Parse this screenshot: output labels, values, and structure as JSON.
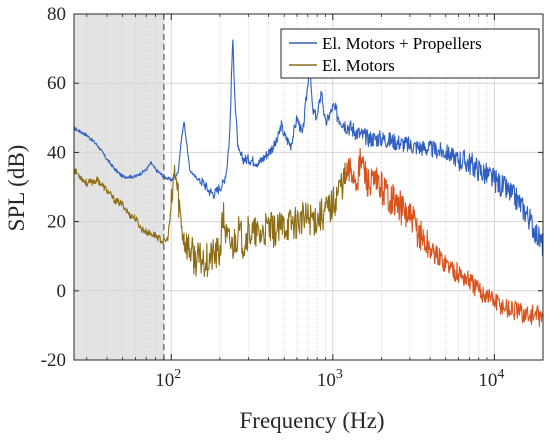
{
  "chart_data": {
    "type": "line",
    "xlabel": "Frequency (Hz)",
    "ylabel": "SPL (dB)",
    "x_scale": "log",
    "xlim": [
      25,
      20000
    ],
    "ylim": [
      -20,
      80
    ],
    "yticks": [
      -20,
      0,
      20,
      40,
      60,
      80
    ],
    "xticks": [
      {
        "value": 100,
        "base": "10",
        "exp": "2"
      },
      {
        "value": 1000,
        "base": "10",
        "exp": "3"
      },
      {
        "value": 10000,
        "base": "10",
        "exp": "4"
      }
    ],
    "grid": true,
    "legend_position": "top-right",
    "shaded_region": {
      "x": [
        25,
        90
      ],
      "color": "#e3e3e3",
      "boundary_line": "dashed"
    },
    "series": [
      {
        "name": "El. Motors + Propellers",
        "color": "#2f5fbf",
        "points": [
          [
            25,
            47
          ],
          [
            30,
            45
          ],
          [
            35,
            42
          ],
          [
            40,
            38
          ],
          [
            45,
            35
          ],
          [
            50,
            33
          ],
          [
            60,
            33
          ],
          [
            70,
            35
          ],
          [
            75,
            37
          ],
          [
            80,
            35
          ],
          [
            90,
            33
          ],
          [
            100,
            32
          ],
          [
            105,
            33
          ],
          [
            110,
            34
          ],
          [
            115,
            43
          ],
          [
            120,
            49
          ],
          [
            125,
            42
          ],
          [
            130,
            35
          ],
          [
            140,
            33
          ],
          [
            150,
            32
          ],
          [
            160,
            31
          ],
          [
            170,
            29
          ],
          [
            185,
            28
          ],
          [
            200,
            30
          ],
          [
            210,
            31
          ],
          [
            220,
            35
          ],
          [
            230,
            45
          ],
          [
            240,
            73
          ],
          [
            250,
            52
          ],
          [
            260,
            40
          ],
          [
            280,
            38
          ],
          [
            300,
            38
          ],
          [
            350,
            37
          ],
          [
            400,
            40
          ],
          [
            450,
            43
          ],
          [
            480,
            48
          ],
          [
            500,
            45
          ],
          [
            550,
            42
          ],
          [
            600,
            50
          ],
          [
            650,
            45
          ],
          [
            700,
            60
          ],
          [
            720,
            65
          ],
          [
            750,
            52
          ],
          [
            800,
            50
          ],
          [
            850,
            58
          ],
          [
            900,
            48
          ],
          [
            1000,
            53
          ],
          [
            1100,
            50
          ],
          [
            1200,
            48
          ],
          [
            1300,
            47
          ],
          [
            1500,
            45
          ],
          [
            1700,
            44
          ],
          [
            2000,
            44
          ],
          [
            2500,
            43
          ],
          [
            3000,
            42
          ],
          [
            4000,
            41
          ],
          [
            5000,
            40
          ],
          [
            6000,
            38
          ],
          [
            7000,
            37
          ],
          [
            8000,
            35
          ],
          [
            10000,
            32
          ],
          [
            12000,
            29
          ],
          [
            14000,
            26
          ],
          [
            16000,
            22
          ],
          [
            18000,
            17
          ],
          [
            20000,
            13
          ]
        ]
      },
      {
        "name": "El. Motors",
        "color": "#8c6d14",
        "color_high": "#d9531e",
        "points": [
          [
            25,
            35
          ],
          [
            30,
            31
          ],
          [
            35,
            32
          ],
          [
            40,
            29
          ],
          [
            45,
            26
          ],
          [
            50,
            25
          ],
          [
            55,
            22
          ],
          [
            60,
            21
          ],
          [
            65,
            18
          ],
          [
            70,
            17
          ],
          [
            80,
            16
          ],
          [
            90,
            14
          ],
          [
            95,
            15
          ],
          [
            100,
            24
          ],
          [
            105,
            35
          ],
          [
            110,
            28
          ],
          [
            115,
            20
          ],
          [
            120,
            15
          ],
          [
            130,
            12
          ],
          [
            140,
            9
          ],
          [
            150,
            9
          ],
          [
            170,
            9
          ],
          [
            180,
            10
          ],
          [
            200,
            11
          ],
          [
            210,
            22
          ],
          [
            220,
            15
          ],
          [
            240,
            13
          ],
          [
            260,
            17
          ],
          [
            280,
            14
          ],
          [
            300,
            17
          ],
          [
            350,
            16
          ],
          [
            400,
            18
          ],
          [
            450,
            17
          ],
          [
            500,
            19
          ],
          [
            600,
            20
          ],
          [
            700,
            21
          ],
          [
            800,
            21
          ],
          [
            900,
            23
          ],
          [
            1000,
            25
          ],
          [
            1100,
            30
          ],
          [
            1200,
            33
          ],
          [
            1300,
            35
          ],
          [
            1400,
            32
          ],
          [
            1500,
            38
          ],
          [
            1600,
            33
          ],
          [
            1700,
            30
          ],
          [
            1800,
            31
          ],
          [
            2000,
            30
          ],
          [
            2200,
            28
          ],
          [
            2500,
            25
          ],
          [
            3000,
            21
          ],
          [
            3500,
            16
          ],
          [
            4000,
            12
          ],
          [
            5000,
            8
          ],
          [
            6000,
            5
          ],
          [
            7000,
            3
          ],
          [
            8000,
            0
          ],
          [
            9000,
            -1
          ],
          [
            10000,
            -3
          ],
          [
            12000,
            -5
          ],
          [
            14000,
            -6
          ],
          [
            16000,
            -7
          ],
          [
            18000,
            -7
          ],
          [
            20000,
            -8
          ]
        ]
      }
    ]
  }
}
